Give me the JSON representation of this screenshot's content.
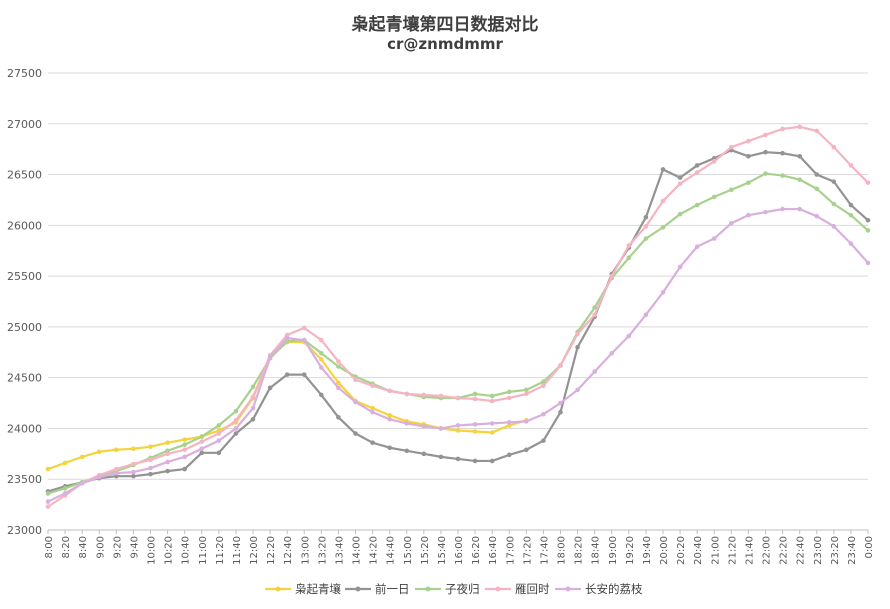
{
  "chart_data": {
    "type": "line",
    "title": "枭起青壤第四日数据对比",
    "subtitle": "cr@znmdmmr",
    "xlabel": "",
    "ylabel": "",
    "ylim": [
      23000,
      27500
    ],
    "yticks": [
      23000,
      23500,
      24000,
      24500,
      25000,
      25500,
      26000,
      26500,
      27000,
      27500
    ],
    "grid": true,
    "legend": "bottom",
    "x": [
      "8:00",
      "8:20",
      "8:40",
      "9:00",
      "9:20",
      "9:40",
      "10:00",
      "10:20",
      "10:40",
      "11:00",
      "11:20",
      "11:40",
      "12:00",
      "12:20",
      "12:40",
      "13:00",
      "13:20",
      "13:40",
      "14:00",
      "14:20",
      "14:40",
      "15:00",
      "15:20",
      "15:40",
      "16:00",
      "16:20",
      "16:40",
      "17:00",
      "17:20",
      "17:40",
      "18:00",
      "18:20",
      "18:40",
      "19:00",
      "19:20",
      "19:40",
      "20:00",
      "20:20",
      "20:40",
      "21:00",
      "21:20",
      "21:40",
      "22:00",
      "22:20",
      "22:40",
      "23:00",
      "23:20",
      "23:40",
      "0:00"
    ],
    "series": [
      {
        "name": "枭起青壤",
        "color": "#f5d33f",
        "values": [
          23600,
          23660,
          23720,
          23770,
          23790,
          23800,
          23820,
          23860,
          23890,
          23920,
          23980,
          24060,
          24300,
          24700,
          24850,
          24850,
          24680,
          24450,
          24270,
          24200,
          24130,
          24070,
          24040,
          24000,
          23980,
          23970,
          23960,
          24030,
          24080,
          null,
          null,
          null,
          null,
          null,
          null,
          null,
          null,
          null,
          null,
          null,
          null,
          null,
          null,
          null,
          null,
          null,
          null,
          null,
          null
        ]
      },
      {
        "name": "前一日",
        "color": "#939393",
        "values": [
          23380,
          23430,
          23470,
          23510,
          23530,
          23530,
          23550,
          23580,
          23600,
          23760,
          23760,
          23950,
          24090,
          24400,
          24530,
          24530,
          24330,
          24110,
          23950,
          23860,
          23810,
          23780,
          23750,
          23720,
          23700,
          23680,
          23680,
          23740,
          23790,
          23880,
          24160,
          24800,
          25100,
          25520,
          25780,
          26080,
          26550,
          26470,
          26590,
          26660,
          26740,
          26680,
          26720,
          26710,
          26680,
          26500,
          26430,
          26200,
          26050
        ]
      },
      {
        "name": "子夜归",
        "color": "#a9d18e",
        "values": [
          23360,
          23410,
          23470,
          23530,
          23580,
          23640,
          23710,
          23780,
          23840,
          23920,
          24030,
          24170,
          24410,
          24690,
          24860,
          24870,
          24740,
          24610,
          24510,
          24440,
          24370,
          24340,
          24310,
          24300,
          24300,
          24340,
          24320,
          24360,
          24380,
          24460,
          24620,
          24950,
          25190,
          25480,
          25680,
          25870,
          25980,
          26110,
          26200,
          26280,
          26350,
          26420,
          26510,
          26490,
          26450,
          26360,
          26210,
          26100,
          25950
        ]
      },
      {
        "name": "雁回时",
        "color": "#f4b4c2",
        "values": [
          23230,
          23340,
          23460,
          23540,
          23600,
          23650,
          23690,
          23750,
          23790,
          23870,
          23950,
          24080,
          24310,
          24720,
          24920,
          24990,
          24870,
          24660,
          24480,
          24420,
          24370,
          24340,
          24330,
          24320,
          24300,
          24290,
          24270,
          24300,
          24340,
          24420,
          24620,
          24930,
          25120,
          25500,
          25800,
          25990,
          26240,
          26410,
          26520,
          26630,
          26770,
          26830,
          26890,
          26950,
          26970,
          26930,
          26770,
          26590,
          26420
        ]
      },
      {
        "name": "长安的荔枝",
        "color": "#d9afde",
        "values": [
          23280,
          23360,
          23460,
          23520,
          23560,
          23570,
          23610,
          23670,
          23720,
          23800,
          23880,
          24000,
          24200,
          24700,
          24890,
          24870,
          24600,
          24400,
          24260,
          24160,
          24090,
          24050,
          24020,
          24000,
          24030,
          24040,
          24050,
          24060,
          24070,
          24140,
          24250,
          24380,
          24560,
          24740,
          24910,
          25120,
          25340,
          25590,
          25790,
          25870,
          26020,
          26100,
          26130,
          26160,
          26160,
          26090,
          25990,
          25820,
          25630
        ]
      }
    ]
  }
}
